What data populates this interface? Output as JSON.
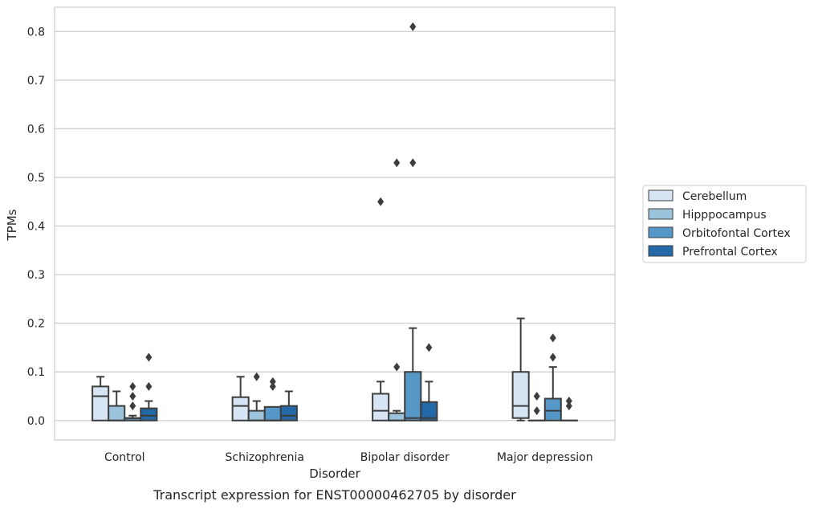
{
  "chart_data": {
    "type": "box",
    "caption": "Transcript expression for ENST00000462705 by disorder",
    "xlabel": "Disorder",
    "ylabel": "TPMs",
    "ylim": [
      -0.04,
      0.85
    ],
    "yticks": [
      0.0,
      0.1,
      0.2,
      0.3,
      0.4,
      0.5,
      0.6,
      0.7,
      0.8
    ],
    "ytick_labels": [
      "0.0",
      "0.1",
      "0.2",
      "0.3",
      "0.4",
      "0.5",
      "0.6",
      "0.7",
      "0.8"
    ],
    "grid": "horizontal",
    "legend_position": "right",
    "categories": [
      "Control",
      "Schizophrenia",
      "Bipolar disorder",
      "Major depression"
    ],
    "series": [
      {
        "name": "Cerebellum",
        "color": "#d6e4f3",
        "boxes": [
          {
            "q1": 0.0,
            "median": 0.05,
            "q3": 0.07,
            "whislo": 0.0,
            "whishi": 0.09,
            "fliers": []
          },
          {
            "q1": 0.0,
            "median": 0.03,
            "q3": 0.048,
            "whislo": 0.0,
            "whishi": 0.09,
            "fliers": []
          },
          {
            "q1": 0.0,
            "median": 0.02,
            "q3": 0.055,
            "whislo": 0.0,
            "whishi": 0.08,
            "fliers": [
              0.45
            ]
          },
          {
            "q1": 0.005,
            "median": 0.03,
            "q3": 0.1,
            "whislo": 0.0,
            "whishi": 0.21,
            "fliers": []
          }
        ]
      },
      {
        "name": "Hipppocampus",
        "color": "#9cc3dc",
        "boxes": [
          {
            "q1": 0.0,
            "median": 0.0,
            "q3": 0.03,
            "whislo": 0.0,
            "whishi": 0.06,
            "fliers": []
          },
          {
            "q1": 0.0,
            "median": 0.0,
            "q3": 0.02,
            "whislo": 0.0,
            "whishi": 0.04,
            "fliers": [
              0.09
            ]
          },
          {
            "q1": 0.0,
            "median": 0.0,
            "q3": 0.015,
            "whislo": 0.0,
            "whishi": 0.02,
            "fliers": [
              0.11,
              0.53
            ]
          },
          {
            "q1": 0.0,
            "median": 0.0,
            "q3": 0.0,
            "whislo": 0.0,
            "whishi": 0.0,
            "fliers": [
              0.02,
              0.05
            ]
          }
        ]
      },
      {
        "name": "Orbitofontal Cortex",
        "color": "#5597c6",
        "boxes": [
          {
            "q1": 0.0,
            "median": 0.005,
            "q3": 0.005,
            "whislo": 0.0,
            "whishi": 0.01,
            "fliers": [
              0.03,
              0.05,
              0.07
            ]
          },
          {
            "q1": 0.0,
            "median": 0.0,
            "q3": 0.028,
            "whislo": 0.0,
            "whishi": 0.028,
            "fliers": [
              0.07,
              0.08
            ]
          },
          {
            "q1": 0.0,
            "median": 0.005,
            "q3": 0.1,
            "whislo": 0.0,
            "whishi": 0.19,
            "fliers": [
              0.53,
              0.81
            ]
          },
          {
            "q1": 0.0,
            "median": 0.02,
            "q3": 0.045,
            "whislo": 0.0,
            "whishi": 0.11,
            "fliers": [
              0.13,
              0.17
            ]
          }
        ]
      },
      {
        "name": "Prefrontal Cortex",
        "color": "#2369a8",
        "boxes": [
          {
            "q1": 0.0,
            "median": 0.01,
            "q3": 0.025,
            "whislo": 0.0,
            "whishi": 0.04,
            "fliers": [
              0.07,
              0.13
            ]
          },
          {
            "q1": 0.0,
            "median": 0.01,
            "q3": 0.03,
            "whislo": 0.0,
            "whishi": 0.06,
            "fliers": []
          },
          {
            "q1": 0.0,
            "median": 0.005,
            "q3": 0.038,
            "whislo": 0.0,
            "whishi": 0.08,
            "fliers": [
              0.15
            ]
          },
          {
            "q1": 0.0,
            "median": 0.0,
            "q3": 0.0,
            "whislo": 0.0,
            "whishi": 0.0,
            "fliers": [
              0.03,
              0.04
            ]
          }
        ]
      }
    ]
  }
}
